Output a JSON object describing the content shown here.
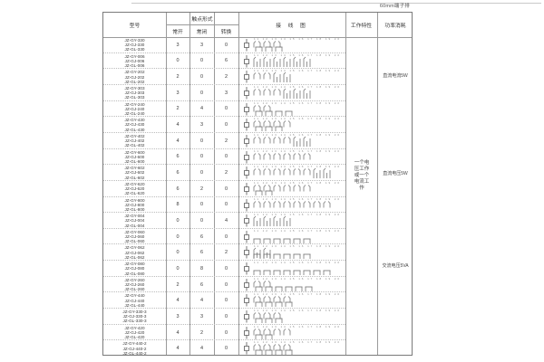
{
  "page_label": "60mm端子排",
  "table": {
    "headers": {
      "model": "型号",
      "contact_form": "触点形式",
      "contact_subheaders": [
        "常开",
        "常闭",
        "转换"
      ],
      "wiring_diagram": "接 线 图",
      "working_characteristics": "工作特性",
      "power_consumption": "功率消耗"
    },
    "working_characteristics_note": "一个电压工作或一个电流工作",
    "power_labels": [
      "直流电流5W",
      "直流电压5W",
      "交流电压5VA"
    ],
    "rows": [
      {
        "models": [
          "JZ-GY-330",
          "JZ-GJ-330",
          "JZ-GL-330"
        ],
        "no": 3,
        "nc": 3,
        "co": 0
      },
      {
        "models": [
          "JZ-GY-006",
          "JZ-GJ-006",
          "JZ-GL-006"
        ],
        "no": 0,
        "nc": 0,
        "co": 6
      },
      {
        "models": [
          "JZ-GY-202",
          "JZ-GJ-202",
          "JZ-GL-202"
        ],
        "no": 2,
        "nc": 0,
        "co": 2
      },
      {
        "models": [
          "JZ-GY-303",
          "JZ-GJ-303",
          "JZ-GL-303"
        ],
        "no": 3,
        "nc": 0,
        "co": 3
      },
      {
        "models": [
          "JZ-GY-240",
          "JZ-GJ-240",
          "JZ-GL-240"
        ],
        "no": 2,
        "nc": 4,
        "co": 0
      },
      {
        "models": [
          "JZ-GY-430",
          "JZ-GJ-430",
          "JZ-GL-430"
        ],
        "no": 4,
        "nc": 3,
        "co": 0
      },
      {
        "models": [
          "JZ-GY-402",
          "JZ-GJ-402",
          "JZ-GL-402"
        ],
        "no": 4,
        "nc": 0,
        "co": 2
      },
      {
        "models": [
          "JZ-GY-600",
          "JZ-GJ-600",
          "JZ-GL-600"
        ],
        "no": 6,
        "nc": 0,
        "co": 0
      },
      {
        "models": [
          "JZ-GY-602",
          "JZ-GJ-602",
          "JZ-GL-602"
        ],
        "no": 6,
        "nc": 0,
        "co": 2
      },
      {
        "models": [
          "JZ-GY-620",
          "JZ-GJ-620",
          "JZ-GL-620"
        ],
        "no": 6,
        "nc": 2,
        "co": 0
      },
      {
        "models": [
          "JZ-GY-800",
          "JZ-GJ-800",
          "JZ-GL-800"
        ],
        "no": 8,
        "nc": 0,
        "co": 0
      },
      {
        "models": [
          "JZ-GY-004",
          "JZ-GJ-004",
          "JZ-GL-004"
        ],
        "no": 0,
        "nc": 0,
        "co": 4
      },
      {
        "models": [
          "JZ-GY-060",
          "JZ-GJ-060",
          "JZ-GL-060"
        ],
        "no": 0,
        "nc": 6,
        "co": 0
      },
      {
        "models": [
          "JZ-GY-062",
          "JZ-GJ-062",
          "JZ-GL-062"
        ],
        "no": 0,
        "nc": 6,
        "co": 2
      },
      {
        "models": [
          "JZ-GY-080",
          "JZ-GJ-080",
          "JZ-GL-080"
        ],
        "no": 0,
        "nc": 8,
        "co": 0
      },
      {
        "models": [
          "JZ-GY-260",
          "JZ-GJ-260",
          "JZ-GL-260"
        ],
        "no": 2,
        "nc": 6,
        "co": 0
      },
      {
        "models": [
          "JZ-GY-440",
          "JZ-GJ-440",
          "JZ-GL-440"
        ],
        "no": 4,
        "nc": 4,
        "co": 0
      },
      {
        "models": [
          "JZ-GY-330-3",
          "JZ-GJ-330-3",
          "JZ-GL-330-3"
        ],
        "no": 3,
        "nc": 3,
        "co": 0
      },
      {
        "models": [
          "JZ-GY-420",
          "JZ-GJ-420",
          "JZ-GL-420"
        ],
        "no": 4,
        "nc": 2,
        "co": 0
      },
      {
        "models": [
          "JZ-GY-440-2",
          "JZ-GJ-440-2",
          "JZ-GL-440-2"
        ],
        "no": 4,
        "nc": 4,
        "co": 0
      }
    ]
  },
  "diagram": {
    "terminal_numbers_top": "11 12 13 14 15 16 17 18 19 20",
    "terminal_numbers_bottom": "1 2 3 4 5 6 7 8 9 10"
  }
}
